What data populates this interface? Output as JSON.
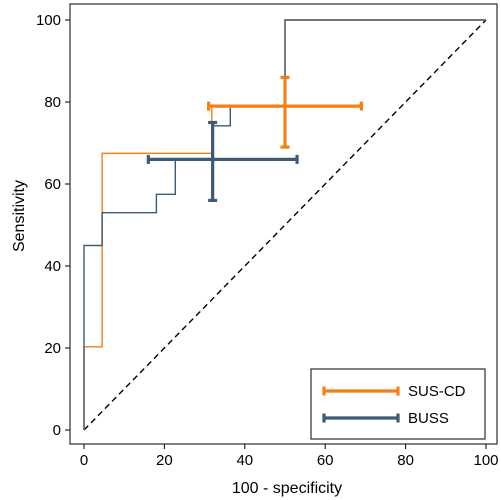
{
  "chart_data": {
    "type": "line",
    "xlabel": "100 - specificity",
    "ylabel": "Sensitivity",
    "xlim": [
      0,
      100
    ],
    "ylim": [
      0,
      100
    ],
    "xticks": [
      0,
      20,
      40,
      60,
      80,
      100
    ],
    "yticks": [
      0,
      20,
      40,
      60,
      80,
      100
    ],
    "grid": false,
    "legend_position": "bottom-right",
    "reference_line": {
      "style": "dashed",
      "from": [
        0,
        0
      ],
      "to": [
        100,
        100
      ],
      "color": "#000000"
    },
    "series": [
      {
        "name": "SUS-CD",
        "color": "#f47f17",
        "roc": [
          [
            0,
            0
          ],
          [
            0,
            20.3
          ],
          [
            4.5,
            20.3
          ],
          [
            4.5,
            67.5
          ],
          [
            31.8,
            67.5
          ],
          [
            31.8,
            79
          ],
          [
            50,
            79
          ],
          [
            50,
            100
          ],
          [
            100,
            100
          ]
        ],
        "point": {
          "x": 50,
          "y": 79,
          "x_ci": [
            31,
            69
          ],
          "y_ci": [
            69,
            86
          ]
        }
      },
      {
        "name": "BUSS",
        "color": "#3e5a74",
        "roc": [
          [
            0,
            0
          ],
          [
            0,
            45
          ],
          [
            4.5,
            45
          ],
          [
            4.5,
            53
          ],
          [
            18,
            53
          ],
          [
            18,
            57.5
          ],
          [
            22.7,
            57.5
          ],
          [
            22.7,
            66
          ],
          [
            31.8,
            66
          ],
          [
            31.8,
            74.2
          ],
          [
            36.4,
            74.2
          ],
          [
            36.4,
            79
          ],
          [
            50,
            79
          ],
          [
            50,
            100
          ],
          [
            100,
            100
          ]
        ],
        "point": {
          "x": 32,
          "y": 66,
          "x_ci": [
            16,
            53
          ],
          "y_ci": [
            56,
            75
          ]
        }
      }
    ]
  }
}
